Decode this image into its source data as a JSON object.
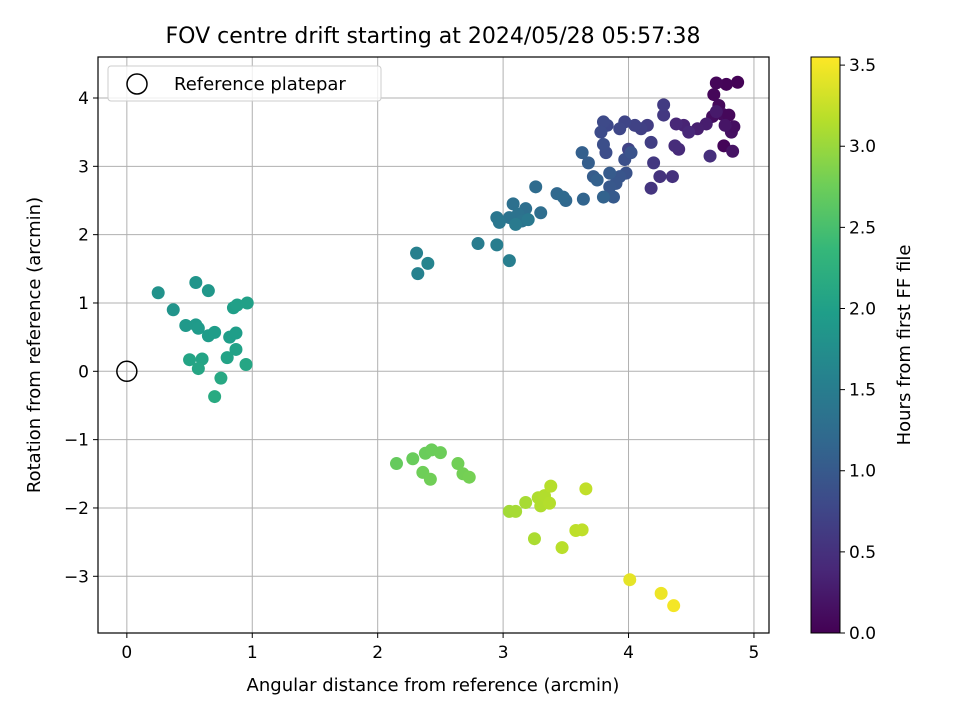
{
  "chart_data": {
    "type": "scatter",
    "title": "FOV centre drift starting at 2024/05/28 05:57:38",
    "xlabel": "Angular distance from reference (arcmin)",
    "ylabel": "Rotation from reference (arcmin)",
    "xlim": [
      -0.23,
      5.12
    ],
    "ylim": [
      -3.83,
      4.6
    ],
    "xticks": [
      0,
      1,
      2,
      3,
      4,
      5
    ],
    "yticks": [
      -3,
      -2,
      -1,
      0,
      1,
      2,
      3,
      4
    ],
    "xtick_labels": [
      "0",
      "1",
      "2",
      "3",
      "4",
      "5"
    ],
    "ytick_labels": [
      "−3",
      "−2",
      "−1",
      "0",
      "1",
      "2",
      "3",
      "4"
    ],
    "grid": true,
    "legend": {
      "location": "top-left",
      "entries": [
        "Reference platepar"
      ]
    },
    "reference_point": {
      "label": "Reference platepar",
      "x": 0,
      "y": 0
    },
    "colorbar": {
      "label": "Hours from first FF file",
      "range": [
        0.0,
        3.55
      ],
      "ticks": [
        0.0,
        0.5,
        1.0,
        1.5,
        2.0,
        2.5,
        3.0,
        3.5
      ],
      "tick_labels": [
        "0.0",
        "0.5",
        "1.0",
        "1.5",
        "2.0",
        "2.5",
        "3.0",
        "3.5"
      ],
      "colormap": "viridis",
      "colormap_stops": [
        "#440154",
        "#482878",
        "#3e4989",
        "#31688e",
        "#26828e",
        "#1f9e89",
        "#35b779",
        "#6ece58",
        "#b5de2b",
        "#fde725"
      ]
    },
    "points": [
      [
        4.87,
        4.23,
        0.02
      ],
      [
        4.78,
        4.2,
        0.03
      ],
      [
        4.7,
        4.22,
        0.05
      ],
      [
        4.68,
        4.05,
        0.06
      ],
      [
        4.72,
        3.89,
        0.08
      ],
      [
        4.75,
        3.76,
        0.1
      ],
      [
        4.67,
        3.73,
        0.12
      ],
      [
        4.8,
        3.75,
        0.07
      ],
      [
        4.82,
        3.5,
        0.15
      ],
      [
        4.76,
        3.3,
        0.04
      ],
      [
        4.83,
        3.22,
        0.18
      ],
      [
        4.84,
        3.58,
        0.13
      ],
      [
        4.77,
        3.6,
        0.2
      ],
      [
        4.7,
        3.8,
        0.25
      ],
      [
        4.62,
        3.62,
        0.28
      ],
      [
        4.55,
        3.55,
        0.3
      ],
      [
        4.44,
        3.6,
        0.35
      ],
      [
        4.38,
        3.62,
        0.38
      ],
      [
        4.48,
        3.5,
        0.4
      ],
      [
        4.4,
        3.25,
        0.42
      ],
      [
        4.37,
        3.3,
        0.45
      ],
      [
        4.65,
        3.15,
        0.48
      ],
      [
        4.35,
        2.85,
        0.5
      ],
      [
        4.25,
        2.85,
        0.52
      ],
      [
        4.18,
        2.68,
        0.55
      ],
      [
        4.2,
        3.05,
        0.58
      ],
      [
        4.28,
        3.75,
        0.6
      ],
      [
        4.28,
        3.9,
        0.62
      ],
      [
        4.15,
        3.6,
        0.64
      ],
      [
        4.18,
        3.35,
        0.66
      ],
      [
        4.1,
        3.55,
        0.68
      ],
      [
        4.05,
        3.6,
        0.7
      ],
      [
        4.0,
        3.25,
        0.72
      ],
      [
        3.97,
        3.65,
        0.74
      ],
      [
        3.93,
        3.55,
        0.76
      ],
      [
        3.83,
        3.6,
        0.78
      ],
      [
        3.8,
        3.65,
        0.8
      ],
      [
        3.78,
        3.5,
        0.82
      ],
      [
        3.82,
        3.2,
        0.84
      ],
      [
        3.8,
        3.32,
        0.86
      ],
      [
        3.97,
        3.1,
        0.88
      ],
      [
        3.98,
        2.9,
        0.9
      ],
      [
        4.02,
        3.2,
        0.92
      ],
      [
        3.93,
        2.85,
        0.94
      ],
      [
        3.9,
        2.75,
        0.96
      ],
      [
        3.85,
        2.7,
        0.98
      ],
      [
        3.88,
        2.55,
        1.0
      ],
      [
        3.85,
        2.9,
        1.02
      ],
      [
        3.72,
        2.85,
        1.04
      ],
      [
        3.68,
        3.05,
        1.06
      ],
      [
        3.63,
        3.2,
        1.08
      ],
      [
        3.75,
        2.8,
        1.1
      ],
      [
        3.8,
        2.55,
        1.12
      ],
      [
        3.64,
        2.52,
        1.15
      ],
      [
        3.5,
        2.5,
        1.18
      ],
      [
        3.43,
        2.6,
        1.2
      ],
      [
        3.48,
        2.55,
        1.22
      ],
      [
        3.26,
        2.7,
        1.25
      ],
      [
        3.3,
        2.32,
        1.27
      ],
      [
        3.18,
        2.38,
        1.29
      ],
      [
        3.08,
        2.45,
        1.31
      ],
      [
        3.12,
        2.3,
        1.33
      ],
      [
        3.05,
        2.25,
        1.35
      ],
      [
        3.15,
        2.2,
        1.37
      ],
      [
        2.95,
        2.25,
        1.39
      ],
      [
        2.97,
        2.18,
        1.41
      ],
      [
        3.2,
        2.22,
        1.43
      ],
      [
        3.1,
        2.15,
        1.45
      ],
      [
        2.8,
        1.87,
        1.48
      ],
      [
        2.95,
        1.85,
        1.5
      ],
      [
        3.05,
        1.62,
        1.52
      ],
      [
        2.31,
        1.73,
        1.55
      ],
      [
        2.32,
        1.43,
        1.57
      ],
      [
        2.4,
        1.58,
        1.6
      ],
      [
        0.25,
        1.15,
        1.8
      ],
      [
        0.37,
        0.9,
        1.83
      ],
      [
        0.55,
        1.3,
        1.85
      ],
      [
        0.65,
        1.18,
        1.88
      ],
      [
        0.47,
        0.67,
        1.9
      ],
      [
        0.55,
        0.68,
        1.92
      ],
      [
        0.57,
        0.63,
        1.93
      ],
      [
        0.65,
        0.52,
        1.95
      ],
      [
        0.7,
        0.57,
        1.96
      ],
      [
        0.82,
        0.5,
        1.97
      ],
      [
        0.87,
        0.56,
        1.98
      ],
      [
        0.85,
        0.93,
        1.99
      ],
      [
        0.88,
        0.97,
        2.0
      ],
      [
        0.96,
        1.0,
        2.01
      ],
      [
        0.87,
        0.32,
        2.03
      ],
      [
        0.8,
        0.2,
        2.05
      ],
      [
        0.5,
        0.17,
        2.06
      ],
      [
        0.6,
        0.18,
        2.07
      ],
      [
        0.57,
        0.04,
        2.09
      ],
      [
        0.95,
        0.1,
        2.1
      ],
      [
        0.75,
        -0.1,
        2.13
      ],
      [
        0.7,
        -0.37,
        2.16
      ],
      [
        2.15,
        -1.35,
        2.7
      ],
      [
        2.28,
        -1.28,
        2.72
      ],
      [
        2.38,
        -1.2,
        2.73
      ],
      [
        2.43,
        -1.15,
        2.74
      ],
      [
        2.5,
        -1.19,
        2.75
      ],
      [
        2.36,
        -1.48,
        2.76
      ],
      [
        2.42,
        -1.58,
        2.77
      ],
      [
        2.64,
        -1.35,
        2.78
      ],
      [
        2.68,
        -1.5,
        2.79
      ],
      [
        2.73,
        -1.55,
        2.8
      ],
      [
        3.05,
        -2.05,
        3.05
      ],
      [
        3.1,
        -2.05,
        3.07
      ],
      [
        3.18,
        -1.92,
        3.08
      ],
      [
        3.25,
        -2.45,
        3.1
      ],
      [
        3.28,
        -1.85,
        3.12
      ],
      [
        3.3,
        -1.97,
        3.13
      ],
      [
        3.33,
        -1.82,
        3.14
      ],
      [
        3.37,
        -1.93,
        3.15
      ],
      [
        3.38,
        -1.68,
        3.16
      ],
      [
        3.47,
        -2.58,
        3.18
      ],
      [
        3.58,
        -2.33,
        3.2
      ],
      [
        3.63,
        -2.32,
        3.21
      ],
      [
        3.66,
        -1.72,
        3.22
      ],
      [
        4.01,
        -3.05,
        3.42
      ],
      [
        4.26,
        -3.25,
        3.46
      ],
      [
        4.36,
        -3.43,
        3.5
      ]
    ]
  }
}
